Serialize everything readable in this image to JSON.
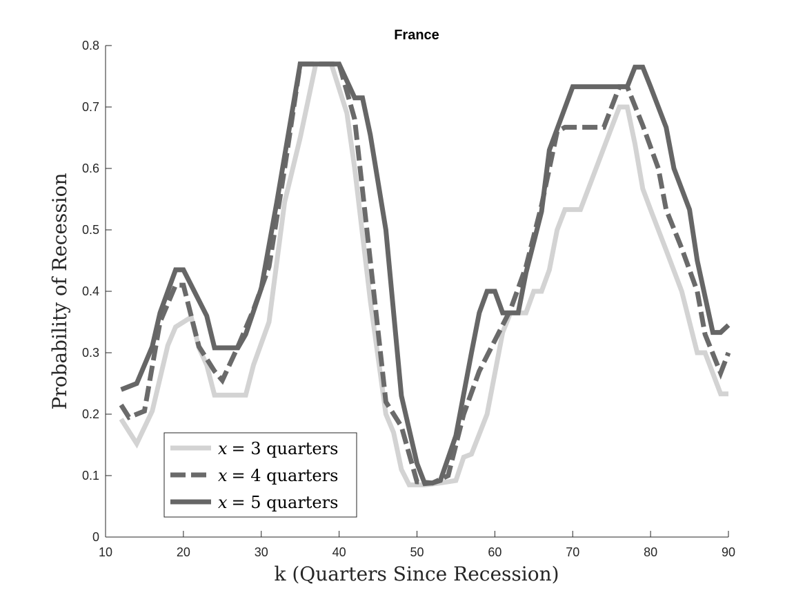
{
  "chart_data": {
    "type": "line",
    "title": "France",
    "xlabel": "k (Quarters Since Recession)",
    "ylabel": "Probability of Recession",
    "xlim": [
      10,
      90
    ],
    "ylim": [
      0,
      0.8
    ],
    "xticks": [
      10,
      20,
      30,
      40,
      50,
      60,
      70,
      80,
      90
    ],
    "yticks": [
      0,
      0.1,
      0.2,
      0.3,
      0.4,
      0.5,
      0.6,
      0.7,
      0.8
    ],
    "grid": false,
    "legend_position": "bottom-left",
    "series": [
      {
        "name": "x = 3 quarters",
        "legend_var": "x",
        "legend_rest": "= 3 quarters",
        "color": "#d3d3d3",
        "style": "solid",
        "points": [
          [
            12,
            0.192
          ],
          [
            14,
            0.152
          ],
          [
            16,
            0.205
          ],
          [
            18,
            0.312
          ],
          [
            19,
            0.342
          ],
          [
            21,
            0.358
          ],
          [
            22,
            0.308
          ],
          [
            23,
            0.28
          ],
          [
            24,
            0.231
          ],
          [
            26,
            0.231
          ],
          [
            28,
            0.231
          ],
          [
            29,
            0.28
          ],
          [
            31,
            0.35
          ],
          [
            33,
            0.545
          ],
          [
            35,
            0.65
          ],
          [
            37,
            0.77
          ],
          [
            39,
            0.77
          ],
          [
            41,
            0.69
          ],
          [
            42,
            0.6
          ],
          [
            44,
            0.385
          ],
          [
            46,
            0.2
          ],
          [
            47,
            0.17
          ],
          [
            48,
            0.11
          ],
          [
            49,
            0.085
          ],
          [
            51,
            0.085
          ],
          [
            53,
            0.088
          ],
          [
            55,
            0.092
          ],
          [
            56,
            0.13
          ],
          [
            57,
            0.135
          ],
          [
            59,
            0.2
          ],
          [
            61,
            0.333
          ],
          [
            62,
            0.365
          ],
          [
            64,
            0.365
          ],
          [
            65,
            0.4
          ],
          [
            66,
            0.4
          ],
          [
            67,
            0.435
          ],
          [
            68,
            0.5
          ],
          [
            69,
            0.533
          ],
          [
            71,
            0.533
          ],
          [
            73,
            0.6
          ],
          [
            75,
            0.667
          ],
          [
            76,
            0.7
          ],
          [
            77,
            0.7
          ],
          [
            78,
            0.64
          ],
          [
            79,
            0.567
          ],
          [
            80,
            0.533
          ],
          [
            82,
            0.467
          ],
          [
            84,
            0.4
          ],
          [
            86,
            0.3
          ],
          [
            87,
            0.3
          ],
          [
            89,
            0.233
          ],
          [
            90,
            0.233
          ]
        ]
      },
      {
        "name": "x = 4 quarters",
        "legend_var": "x",
        "legend_rest": "= 4 quarters",
        "color": "#6a6a6a",
        "style": "dashed",
        "points": [
          [
            12,
            0.215
          ],
          [
            13,
            0.195
          ],
          [
            15,
            0.205
          ],
          [
            17,
            0.35
          ],
          [
            19,
            0.41
          ],
          [
            20,
            0.41
          ],
          [
            22,
            0.31
          ],
          [
            24,
            0.27
          ],
          [
            25,
            0.255
          ],
          [
            27,
            0.31
          ],
          [
            29,
            0.37
          ],
          [
            31,
            0.44
          ],
          [
            33,
            0.6
          ],
          [
            35,
            0.77
          ],
          [
            40,
            0.77
          ],
          [
            42,
            0.68
          ],
          [
            44,
            0.45
          ],
          [
            46,
            0.22
          ],
          [
            48,
            0.18
          ],
          [
            50,
            0.09
          ],
          [
            52,
            0.088
          ],
          [
            54,
            0.1
          ],
          [
            56,
            0.2
          ],
          [
            58,
            0.27
          ],
          [
            60,
            0.32
          ],
          [
            62,
            0.37
          ],
          [
            64,
            0.44
          ],
          [
            66,
            0.54
          ],
          [
            68,
            0.66
          ],
          [
            69,
            0.667
          ],
          [
            74,
            0.667
          ],
          [
            76,
            0.733
          ],
          [
            77,
            0.733
          ],
          [
            79,
            0.67
          ],
          [
            81,
            0.6
          ],
          [
            82,
            0.533
          ],
          [
            84,
            0.47
          ],
          [
            86,
            0.4
          ],
          [
            87,
            0.33
          ],
          [
            89,
            0.267
          ],
          [
            90,
            0.3
          ]
        ]
      },
      {
        "name": "x = 5 quarters",
        "legend_var": "x",
        "legend_rest": "= 5 quarters",
        "color": "#666666",
        "style": "solid",
        "points": [
          [
            12,
            0.24
          ],
          [
            14,
            0.25
          ],
          [
            16,
            0.31
          ],
          [
            17,
            0.365
          ],
          [
            19,
            0.435
          ],
          [
            20,
            0.435
          ],
          [
            23,
            0.36
          ],
          [
            24,
            0.308
          ],
          [
            26,
            0.308
          ],
          [
            27,
            0.308
          ],
          [
            28,
            0.33
          ],
          [
            30,
            0.405
          ],
          [
            32,
            0.545
          ],
          [
            35,
            0.77
          ],
          [
            40,
            0.77
          ],
          [
            42,
            0.715
          ],
          [
            43,
            0.715
          ],
          [
            44,
            0.655
          ],
          [
            46,
            0.5
          ],
          [
            48,
            0.23
          ],
          [
            50,
            0.12
          ],
          [
            51,
            0.087
          ],
          [
            52,
            0.088
          ],
          [
            53,
            0.092
          ],
          [
            55,
            0.165
          ],
          [
            57,
            0.3
          ],
          [
            58,
            0.365
          ],
          [
            59,
            0.4
          ],
          [
            60,
            0.4
          ],
          [
            61,
            0.365
          ],
          [
            63,
            0.365
          ],
          [
            64,
            0.43
          ],
          [
            66,
            0.53
          ],
          [
            67,
            0.63
          ],
          [
            70,
            0.733
          ],
          [
            77,
            0.733
          ],
          [
            78,
            0.765
          ],
          [
            79,
            0.765
          ],
          [
            80,
            0.733
          ],
          [
            82,
            0.667
          ],
          [
            83,
            0.6
          ],
          [
            85,
            0.533
          ],
          [
            86,
            0.45
          ],
          [
            88,
            0.333
          ],
          [
            89,
            0.333
          ],
          [
            90,
            0.345
          ]
        ]
      }
    ]
  }
}
